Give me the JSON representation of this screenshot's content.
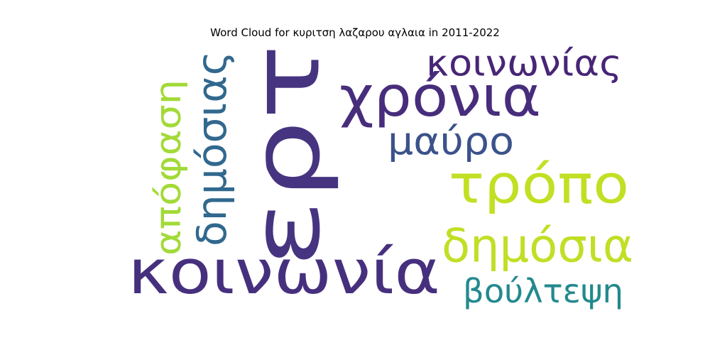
{
  "chart_data": {
    "type": "wordcloud",
    "title": "Word Cloud for κυριτση λαζαρου αγλαια in 2011-2022",
    "words": [
      {
        "text": "ερτ",
        "weight": 1.0,
        "color": "#463480",
        "rotated": true
      },
      {
        "text": "κοινωνία",
        "weight": 0.72,
        "color": "#46307e",
        "rotated": false
      },
      {
        "text": "τρόπο",
        "weight": 0.62,
        "color": "#c2df23",
        "rotated": false
      },
      {
        "text": "χρόνια",
        "weight": 0.6,
        "color": "#472d7b",
        "rotated": false
      },
      {
        "text": "δημόσια",
        "weight": 0.52,
        "color": "#c0df25",
        "rotated": false
      },
      {
        "text": "απόφαση",
        "weight": 0.47,
        "color": "#a2da37",
        "rotated": true
      },
      {
        "text": "δημόσιας",
        "weight": 0.46,
        "color": "#31688e",
        "rotated": true
      },
      {
        "text": "κοινωνίας",
        "weight": 0.42,
        "color": "#482576",
        "rotated": false
      },
      {
        "text": "μαύρο",
        "weight": 0.41,
        "color": "#3b528b",
        "rotated": false
      },
      {
        "text": "βούλτεψη",
        "weight": 0.38,
        "color": "#23898e",
        "rotated": false
      }
    ]
  }
}
